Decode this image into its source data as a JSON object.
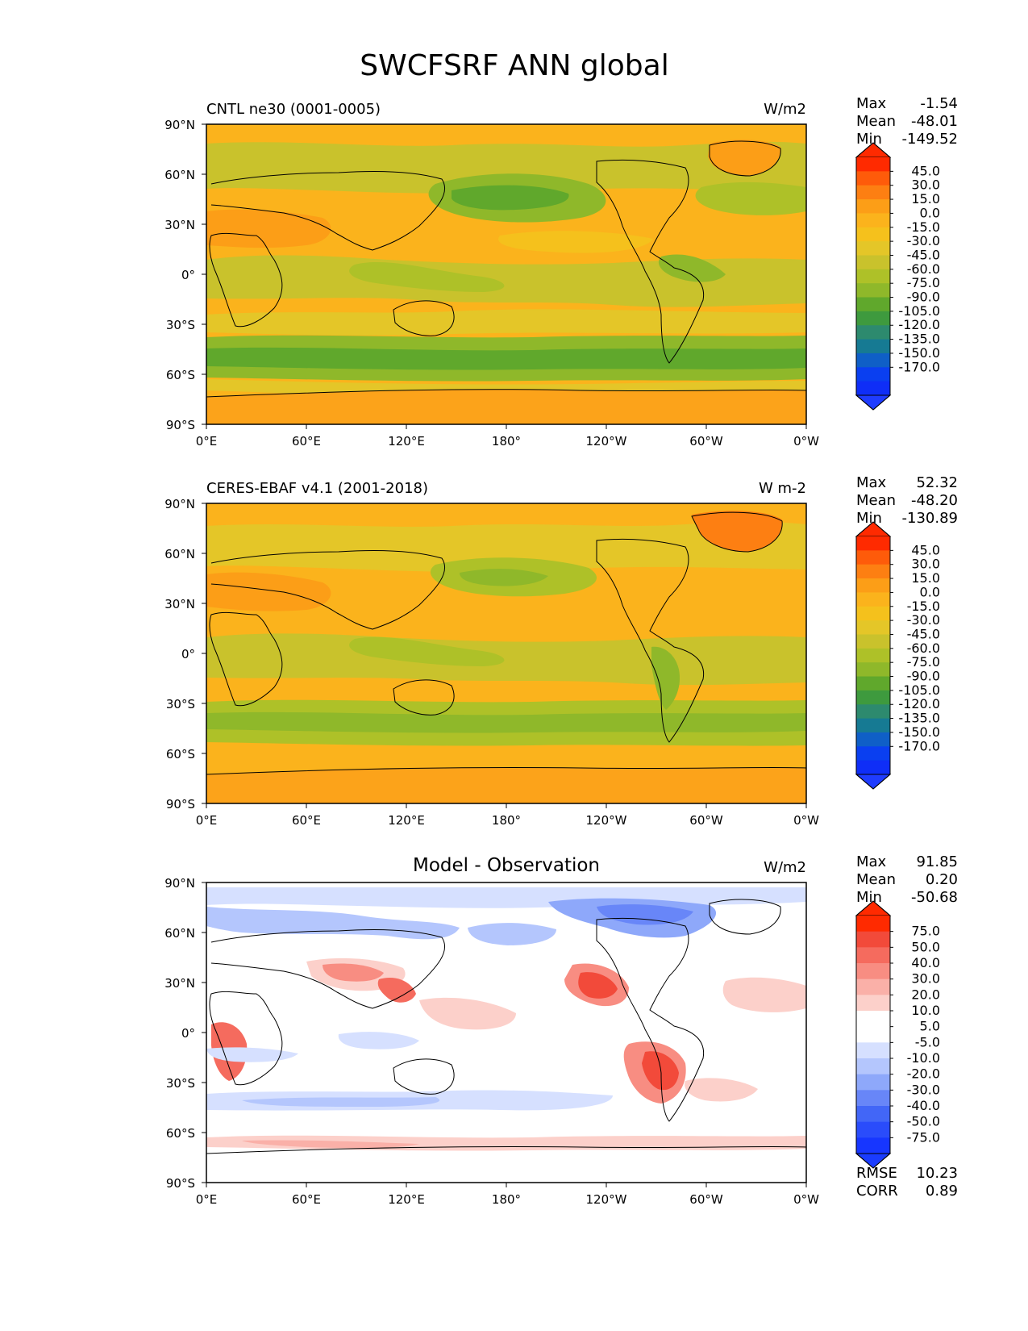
{
  "figure": {
    "title": "SWCFSRF ANN global"
  },
  "panels": [
    {
      "left_title": "CNTL ne30 (0001-0005)",
      "center_title": "",
      "units": "W/m2",
      "stats": {
        "labels": [
          "Max",
          "Mean",
          "Min"
        ],
        "values": [
          "-1.54",
          "-48.01",
          "-149.52"
        ]
      },
      "colorbar": {
        "ticks": [
          "45.0",
          "30.0",
          "15.0",
          "0.0",
          "-15.0",
          "-30.0",
          "-45.0",
          "-60.0",
          "-75.0",
          "-90.0",
          "-105.0",
          "-120.0",
          "-135.0",
          "-150.0",
          "-170.0"
        ],
        "colors": [
          "#ff2a00",
          "#fe5b0a",
          "#fd7f12",
          "#fc9e17",
          "#fbb31c",
          "#f5c11c",
          "#e4c628",
          "#c9c22c",
          "#aec128",
          "#8fb82a",
          "#60a82c",
          "#3e9a3e",
          "#2d8a6e",
          "#167a93",
          "#0f5fc7",
          "#0a3ff0",
          "#0f2ef7"
        ],
        "extend_max_color": "#ff2a00",
        "extend_min_color": "#1f3cff"
      },
      "extra_stats": null
    },
    {
      "left_title": "CERES-EBAF v4.1 (2001-2018)",
      "center_title": "",
      "units": "W m-2",
      "stats": {
        "labels": [
          "Max",
          "Mean",
          "Min"
        ],
        "values": [
          "52.32",
          "-48.20",
          "-130.89"
        ]
      },
      "colorbar": {
        "ticks": [
          "45.0",
          "30.0",
          "15.0",
          "0.0",
          "-15.0",
          "-30.0",
          "-45.0",
          "-60.0",
          "-75.0",
          "-90.0",
          "-105.0",
          "-120.0",
          "-135.0",
          "-150.0",
          "-170.0"
        ],
        "colors": [
          "#ff2a00",
          "#fe5b0a",
          "#fd7f12",
          "#fc9e17",
          "#fbb31c",
          "#f5c11c",
          "#e4c628",
          "#c9c22c",
          "#aec128",
          "#8fb82a",
          "#60a82c",
          "#3e9a3e",
          "#2d8a6e",
          "#167a93",
          "#0f5fc7",
          "#0a3ff0",
          "#0f2ef7"
        ],
        "extend_max_color": "#ff2a00",
        "extend_min_color": "#1f3cff"
      },
      "extra_stats": null
    },
    {
      "left_title": "",
      "center_title": "Model - Observation",
      "units": "W/m2",
      "stats": {
        "labels": [
          "Max",
          "Mean",
          "Min"
        ],
        "values": [
          "91.85",
          "0.20",
          "-50.68"
        ]
      },
      "colorbar": {
        "ticks": [
          "75.0",
          "50.0",
          "40.0",
          "30.0",
          "20.0",
          "10.0",
          "5.0",
          "-5.0",
          "-10.0",
          "-20.0",
          "-30.0",
          "-40.0",
          "-50.0",
          "-75.0"
        ],
        "colors": [
          "#ff2a00",
          "#f24a3a",
          "#f56b5e",
          "#f88d82",
          "#fab0a8",
          "#fcd0ca",
          "#ffffff",
          "#ffffff",
          "#d6e0ff",
          "#b4c6fd",
          "#8ea8fa",
          "#6886f8",
          "#4266f7",
          "#2a4cfb",
          "#1736ff"
        ],
        "extend_max_color": "#ff2a00",
        "extend_min_color": "#1a3cff"
      },
      "extra_stats": {
        "labels": [
          "RMSE",
          "CORR"
        ],
        "values": [
          "10.23",
          "0.89"
        ]
      }
    }
  ],
  "axes": {
    "lat_ticks": [
      "90°N",
      "60°N",
      "30°N",
      "0°",
      "30°S",
      "60°S",
      "90°S"
    ],
    "lon_ticks": [
      "0°E",
      "60°E",
      "120°E",
      "180°",
      "120°W",
      "60°W",
      "0°W"
    ]
  },
  "map_styles": {
    "abs_background": "#fbb31c",
    "diff_background": "#ffffff",
    "coast_color": "#000000"
  }
}
